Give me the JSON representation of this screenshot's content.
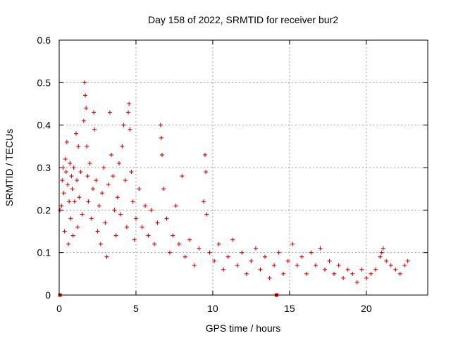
{
  "chart_data": {
    "type": "scatter",
    "title": "Day 158 of 2022, SRMTID for receiver bur2",
    "xlabel": "GPS time / hours",
    "ylabel": "SRMTID / TECUs",
    "xlim": [
      0,
      24
    ],
    "ylim": [
      0,
      0.6
    ],
    "xticks": [
      0,
      5,
      10,
      15,
      20
    ],
    "xtick_labels": [
      "0",
      "5",
      "10",
      "15",
      "20"
    ],
    "yticks": [
      0,
      0.1,
      0.2,
      0.3,
      0.4,
      0.5,
      0.6
    ],
    "ytick_labels": [
      "0",
      "0.1",
      "0.2",
      "0.3",
      "0.4",
      "0.5",
      "0.6"
    ],
    "grid": true,
    "marker": "plus",
    "color": "#e00000",
    "series": [
      {
        "name": "SRMTID",
        "points": [
          [
            0.05,
            0.2
          ],
          [
            0.15,
            0.21
          ],
          [
            0.2,
            0.27
          ],
          [
            0.25,
            0.3
          ],
          [
            0.3,
            0.24
          ],
          [
            0.35,
            0.15
          ],
          [
            0.4,
            0.32
          ],
          [
            0.45,
            0.29
          ],
          [
            0.5,
            0.36
          ],
          [
            0.55,
            0.26
          ],
          [
            0.6,
            0.12
          ],
          [
            0.65,
            0.22
          ],
          [
            0.7,
            0.31
          ],
          [
            0.75,
            0.18
          ],
          [
            0.8,
            0.28
          ],
          [
            0.85,
            0.25
          ],
          [
            0.9,
            0.14
          ],
          [
            0.95,
            0.3
          ],
          [
            1.0,
            0.22
          ],
          [
            1.1,
            0.38
          ],
          [
            1.15,
            0.27
          ],
          [
            1.2,
            0.16
          ],
          [
            1.25,
            0.35
          ],
          [
            1.3,
            0.23
          ],
          [
            1.4,
            0.29
          ],
          [
            1.5,
            0.19
          ],
          [
            1.6,
            0.41
          ],
          [
            1.65,
            0.5
          ],
          [
            1.7,
            0.47
          ],
          [
            1.75,
            0.44
          ],
          [
            1.8,
            0.35
          ],
          [
            1.85,
            0.28
          ],
          [
            1.9,
            0.22
          ],
          [
            2.0,
            0.31
          ],
          [
            2.1,
            0.18
          ],
          [
            2.2,
            0.25
          ],
          [
            2.25,
            0.43
          ],
          [
            2.3,
            0.39
          ],
          [
            2.4,
            0.27
          ],
          [
            2.5,
            0.15
          ],
          [
            2.6,
            0.21
          ],
          [
            2.7,
            0.12
          ],
          [
            2.8,
            0.24
          ],
          [
            2.9,
            0.3
          ],
          [
            3.0,
            0.17
          ],
          [
            3.1,
            0.09
          ],
          [
            3.2,
            0.26
          ],
          [
            3.3,
            0.43
          ],
          [
            3.4,
            0.33
          ],
          [
            3.5,
            0.28
          ],
          [
            3.6,
            0.2
          ],
          [
            3.7,
            0.14
          ],
          [
            3.8,
            0.23
          ],
          [
            3.9,
            0.31
          ],
          [
            4.0,
            0.19
          ],
          [
            4.1,
            0.35
          ],
          [
            4.2,
            0.4
          ],
          [
            4.3,
            0.27
          ],
          [
            4.4,
            0.16
          ],
          [
            4.5,
            0.43
          ],
          [
            4.55,
            0.45
          ],
          [
            4.6,
            0.39
          ],
          [
            4.7,
            0.29
          ],
          [
            4.8,
            0.22
          ],
          [
            4.9,
            0.13
          ],
          [
            5.0,
            0.18
          ],
          [
            5.2,
            0.25
          ],
          [
            5.4,
            0.16
          ],
          [
            5.6,
            0.21
          ],
          [
            5.8,
            0.14
          ],
          [
            6.0,
            0.2
          ],
          [
            6.2,
            0.12
          ],
          [
            6.4,
            0.17
          ],
          [
            6.6,
            0.4
          ],
          [
            6.65,
            0.37
          ],
          [
            6.7,
            0.33
          ],
          [
            6.8,
            0.25
          ],
          [
            7.0,
            0.18
          ],
          [
            7.2,
            0.1
          ],
          [
            7.4,
            0.14
          ],
          [
            7.6,
            0.21
          ],
          [
            7.8,
            0.12
          ],
          [
            8.0,
            0.28
          ],
          [
            8.2,
            0.09
          ],
          [
            8.5,
            0.13
          ],
          [
            8.8,
            0.07
          ],
          [
            9.1,
            0.11
          ],
          [
            9.4,
            0.22
          ],
          [
            9.5,
            0.33
          ],
          [
            9.55,
            0.29
          ],
          [
            9.6,
            0.19
          ],
          [
            9.8,
            0.1
          ],
          [
            10.1,
            0.08
          ],
          [
            10.4,
            0.12
          ],
          [
            10.7,
            0.06
          ],
          [
            11.0,
            0.09
          ],
          [
            11.3,
            0.13
          ],
          [
            11.6,
            0.07
          ],
          [
            11.9,
            0.1
          ],
          [
            12.2,
            0.05
          ],
          [
            12.5,
            0.08
          ],
          [
            12.8,
            0.11
          ],
          [
            13.1,
            0.06
          ],
          [
            13.4,
            0.09
          ],
          [
            13.7,
            0.04
          ],
          [
            14.0,
            0.07
          ],
          [
            14.3,
            0.1
          ],
          [
            14.6,
            0.05
          ],
          [
            14.9,
            0.08
          ],
          [
            15.2,
            0.12
          ],
          [
            15.5,
            0.07
          ],
          [
            15.8,
            0.09
          ],
          [
            16.1,
            0.05
          ],
          [
            16.4,
            0.1
          ],
          [
            16.7,
            0.07
          ],
          [
            17.0,
            0.11
          ],
          [
            17.3,
            0.06
          ],
          [
            17.6,
            0.08
          ],
          [
            17.9,
            0.05
          ],
          [
            18.2,
            0.07
          ],
          [
            18.5,
            0.04
          ],
          [
            18.8,
            0.06
          ],
          [
            19.1,
            0.05
          ],
          [
            19.4,
            0.03
          ],
          [
            19.7,
            0.06
          ],
          [
            20.0,
            0.04
          ],
          [
            20.3,
            0.05
          ],
          [
            20.6,
            0.06
          ],
          [
            20.9,
            0.09
          ],
          [
            21.0,
            0.1
          ],
          [
            21.1,
            0.11
          ],
          [
            21.3,
            0.08
          ],
          [
            21.6,
            0.07
          ],
          [
            21.9,
            0.06
          ],
          [
            22.2,
            0.05
          ],
          [
            22.5,
            0.07
          ],
          [
            22.7,
            0.08
          ]
        ]
      }
    ],
    "axis_markers": [
      {
        "x": 0.05,
        "y": 0
      },
      {
        "x": 14.15,
        "y": 0
      }
    ]
  }
}
